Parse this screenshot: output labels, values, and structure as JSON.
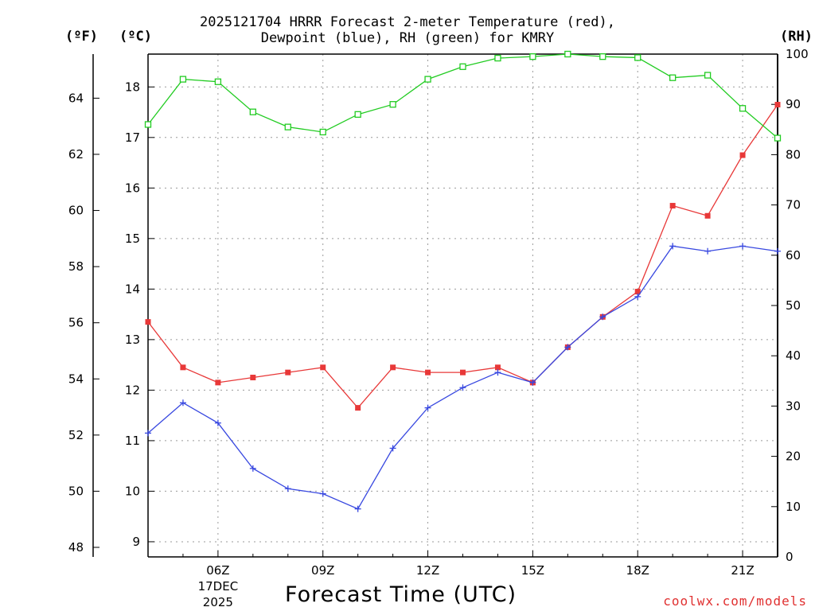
{
  "chart_data": {
    "type": "line",
    "title_line1": "2025121704 HRRR Forecast 2-meter Temperature (red),",
    "title_line2": "Dewpoint (blue), RH (green) for KMRY",
    "xlabel": "Forecast Time (UTC)",
    "unit_f": "(ºF)",
    "unit_c": "(ºC)",
    "unit_rh": "(RH)",
    "credit": "coolwx.com/models",
    "x": [
      4,
      5,
      6,
      7,
      8,
      9,
      10,
      11,
      12,
      13,
      14,
      15,
      16,
      17,
      18,
      19,
      20,
      21,
      22
    ],
    "x_range": [
      4,
      22
    ],
    "x_ticks": [
      {
        "x": 6,
        "label": "06Z"
      },
      {
        "x": 9,
        "label": "09Z"
      },
      {
        "x": 12,
        "label": "12Z"
      },
      {
        "x": 15,
        "label": "15Z"
      },
      {
        "x": 18,
        "label": "18Z"
      },
      {
        "x": 21,
        "label": "21Z"
      }
    ],
    "date_label_1": "17DEC",
    "date_label_2": "2025",
    "celsius_range": [
      8.7,
      18.65
    ],
    "celsius_ticks": [
      "9",
      "10",
      "11",
      "12",
      "13",
      "14",
      "15",
      "16",
      "17",
      "18"
    ],
    "fahrenheit_ticks": [
      "48",
      "50",
      "52",
      "54",
      "56",
      "58",
      "60",
      "62",
      "64"
    ],
    "rh_range": [
      0,
      100
    ],
    "rh_ticks": [
      "0",
      "10",
      "20",
      "30",
      "40",
      "50",
      "60",
      "70",
      "80",
      "90",
      "100"
    ],
    "series": [
      {
        "name": "Temperature",
        "unit": "C",
        "color": "#e83838",
        "marker": "filled-square",
        "values": [
          13.35,
          12.45,
          12.15,
          12.25,
          12.35,
          12.45,
          11.65,
          12.45,
          12.35,
          12.35,
          12.45,
          12.15,
          12.85,
          13.45,
          13.95,
          15.65,
          15.45,
          16.65,
          17.65
        ]
      },
      {
        "name": "Dewpoint",
        "unit": "C",
        "color": "#3848e0",
        "marker": "plus",
        "values": [
          11.15,
          11.75,
          11.35,
          10.45,
          10.05,
          9.95,
          9.65,
          10.85,
          11.65,
          12.05,
          12.35,
          12.15,
          12.85,
          13.45,
          13.85,
          14.85,
          14.75,
          14.85,
          14.75
        ]
      },
      {
        "name": "RH",
        "unit": "%",
        "color": "#22cc22",
        "marker": "open-square",
        "values": [
          86,
          95,
          94.5,
          88.5,
          85.5,
          84.5,
          88,
          90,
          95,
          97.5,
          99.2,
          99.5,
          100,
          99.5,
          99.3,
          95.3,
          95.8,
          89.2,
          83.3
        ]
      }
    ]
  }
}
